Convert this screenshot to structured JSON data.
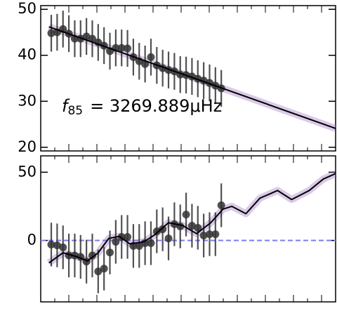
{
  "chart_data": [
    {
      "type": "errorbar",
      "x": [
        0,
        1,
        2,
        3,
        4,
        5,
        6,
        7,
        8,
        9,
        10,
        11,
        12,
        13,
        14,
        15,
        16,
        17,
        18,
        19,
        20,
        21,
        22,
        23,
        24,
        25,
        26,
        27,
        28,
        29
      ],
      "values": [
        44.8,
        45,
        45.7,
        44.7,
        43.6,
        43.6,
        44.1,
        43.6,
        42.8,
        42.1,
        40.9,
        41.6,
        41.6,
        41.5,
        39.6,
        38.7,
        38.1,
        39.6,
        37.8,
        37.2,
        36.8,
        36.5,
        35.8,
        35.7,
        35.4,
        34.9,
        34.5,
        34,
        33.4,
        32.8
      ],
      "errors": [
        4,
        4,
        4,
        4,
        4,
        4,
        4,
        4,
        4,
        4,
        4,
        4,
        4,
        4,
        4,
        4,
        4,
        4,
        4,
        4,
        4,
        4,
        4,
        4,
        4,
        4,
        4,
        4,
        4,
        4
      ],
      "model": {
        "x": [
          -0.4,
          48.5
        ],
        "values": [
          46.2,
          24.1
        ]
      },
      "color": "#333333",
      "model_color": "#000000",
      "band_color": "#9467bd",
      "xlim": [
        -1.8,
        48.5
      ],
      "ylim": [
        19.2,
        50.8
      ],
      "yticks": [
        20,
        30,
        40,
        50
      ],
      "annotation": {
        "symbol": "f",
        "subscript": "85",
        "text": "= 3269.889μHz"
      }
    },
    {
      "type": "errorbar",
      "x": [
        0,
        1,
        2,
        3,
        4,
        5,
        6,
        7,
        8,
        9,
        10,
        11,
        12,
        13,
        14,
        15,
        16,
        17,
        18,
        19,
        20,
        21,
        22,
        23,
        24,
        25,
        26,
        27,
        28,
        29
      ],
      "values": [
        -3,
        -3.6,
        -5,
        -11,
        -11,
        -12,
        -15.5,
        -11,
        -22.7,
        -20.6,
        -8.8,
        -1,
        2.6,
        2.6,
        -4,
        -4,
        -2,
        -2,
        6.7,
        8.2,
        1.5,
        11.9,
        10.3,
        19,
        10.8,
        9.3,
        3.6,
        4.6,
        4.6,
        25.8
      ],
      "errors": [
        16,
        16,
        16,
        16,
        16,
        16,
        16,
        16,
        16,
        16,
        16,
        16,
        16,
        16,
        16,
        16,
        16,
        16,
        16,
        16,
        16,
        16,
        16,
        16,
        16,
        16,
        16,
        16,
        16,
        16
      ],
      "model": {
        "x": [
          -0.4,
          2,
          4.4,
          6.2,
          8,
          9.8,
          11.6,
          13.4,
          15.8,
          17.6,
          20,
          22.4,
          24.8,
          27.2,
          29.3,
          30.8,
          33.2,
          35.6,
          38.6,
          41,
          44,
          46.4,
          48.5
        ],
        "values": [
          -16.5,
          -9,
          -12,
          -15,
          -9,
          1.5,
          3,
          -2.5,
          -1,
          4,
          13,
          11,
          5,
          13,
          23,
          25,
          19.6,
          31,
          36.6,
          30,
          36.6,
          45,
          49
        ]
      },
      "hline": 0,
      "hline_color": "#7b7bf5",
      "color": "#333333",
      "model_color": "#000000",
      "band_color": "#9467bd",
      "xlim": [
        -1.8,
        48.5
      ],
      "ylim": [
        -45,
        62
      ],
      "yticks": [
        0,
        50
      ]
    }
  ]
}
